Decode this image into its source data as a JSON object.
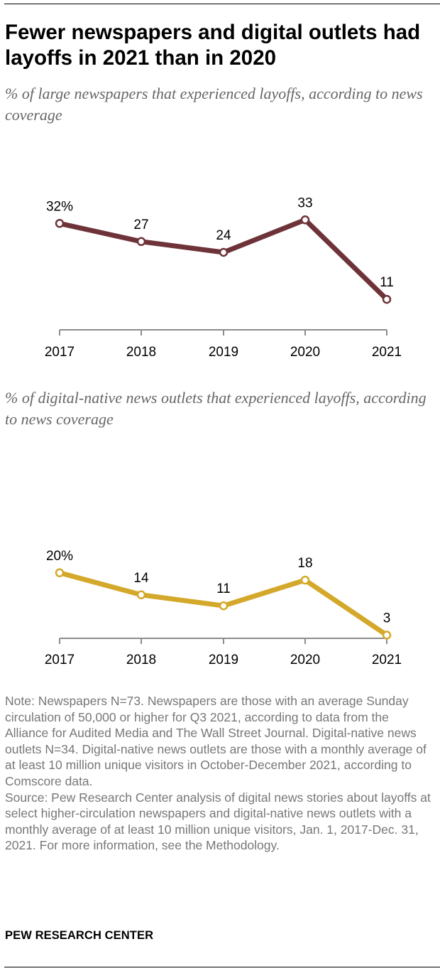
{
  "title": "Fewer newspapers and digital outlets had layoffs in 2021 than in 2020",
  "chart_data": [
    {
      "type": "line",
      "subtitle": "% of large newspapers that experienced layoffs, according to news coverage",
      "categories": [
        "2017",
        "2018",
        "2019",
        "2020",
        "2021"
      ],
      "values": [
        32,
        27,
        24,
        33,
        11
      ],
      "labels": [
        "32%",
        "27",
        "24",
        "33",
        "11"
      ],
      "color": "#6e3339",
      "ylim": [
        0,
        36
      ],
      "grid": false
    },
    {
      "type": "line",
      "subtitle": "% of digital-native news outlets that experienced layoffs, according to news coverage",
      "categories": [
        "2017",
        "2018",
        "2019",
        "2020",
        "2021"
      ],
      "values": [
        20,
        14,
        11,
        18,
        3
      ],
      "labels": [
        "20%",
        "14",
        "11",
        "18",
        "3"
      ],
      "color": "#d4a82a",
      "ylim": [
        0,
        25
      ],
      "grid": false
    }
  ],
  "note": "Note: Newspapers N=73. Newspapers are those with an average Sunday circulation of 50,000 or higher for Q3 2021, according to data from the Alliance for Audited Media and The Wall Street Journal. Digital-native news outlets N=34. Digital-native news outlets are those with a monthly average of at least 10 million unique visitors in October-December 2021, according to Comscore data.",
  "source": "Source: Pew Research Center analysis of digital news stories about layoffs at select higher-circulation newspapers and digital-native news outlets with a monthly average of at least 10 million unique visitors, Jan. 1, 2017-Dec. 31, 2021. For more information, see the Methodology.",
  "brand": "PEW RESEARCH CENTER"
}
